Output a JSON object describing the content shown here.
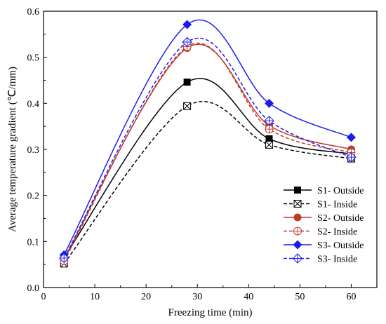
{
  "chart_data": {
    "type": "line",
    "xlabel": "Freezing time (min)",
    "ylabel": "Average temperature gradient  (℃/mm)",
    "xlim": [
      0,
      65
    ],
    "ylim": [
      0.0,
      0.6
    ],
    "xticks": [
      "0",
      "10",
      "20",
      "30",
      "40",
      "50",
      "60"
    ],
    "yticks": [
      "0.0",
      "0.1",
      "0.2",
      "0.3",
      "0.4",
      "0.5",
      "0.6"
    ],
    "x": [
      4,
      28,
      44,
      60
    ],
    "legend_position": "bottom-right",
    "grid": false,
    "series": [
      {
        "name": "S1- Outside",
        "values": [
          0.065,
          0.446,
          0.323,
          0.29
        ],
        "color": "#000000",
        "dash": "solid",
        "marker": "square-filled"
      },
      {
        "name": "S1- Inside",
        "values": [
          0.052,
          0.394,
          0.31,
          0.28
        ],
        "color": "#000000",
        "dash": "dashed",
        "marker": "square-x"
      },
      {
        "name": "S2- Outside",
        "values": [
          0.063,
          0.52,
          0.352,
          0.3
        ],
        "color": "#c0392b",
        "dash": "solid",
        "marker": "circle-filled"
      },
      {
        "name": "S2- Inside",
        "values": [
          0.058,
          0.523,
          0.344,
          0.293
        ],
        "color": "#c0392b",
        "dash": "dashed",
        "marker": "circle-plus"
      },
      {
        "name": "S3- Outside",
        "values": [
          0.071,
          0.571,
          0.4,
          0.326
        ],
        "color": "#1c1cf0",
        "dash": "solid",
        "marker": "diamond-filled"
      },
      {
        "name": "S3- Inside",
        "values": [
          0.064,
          0.533,
          0.362,
          0.283
        ],
        "color": "#1c1cf0",
        "dash": "dashed",
        "marker": "diamond-plus"
      }
    ]
  }
}
